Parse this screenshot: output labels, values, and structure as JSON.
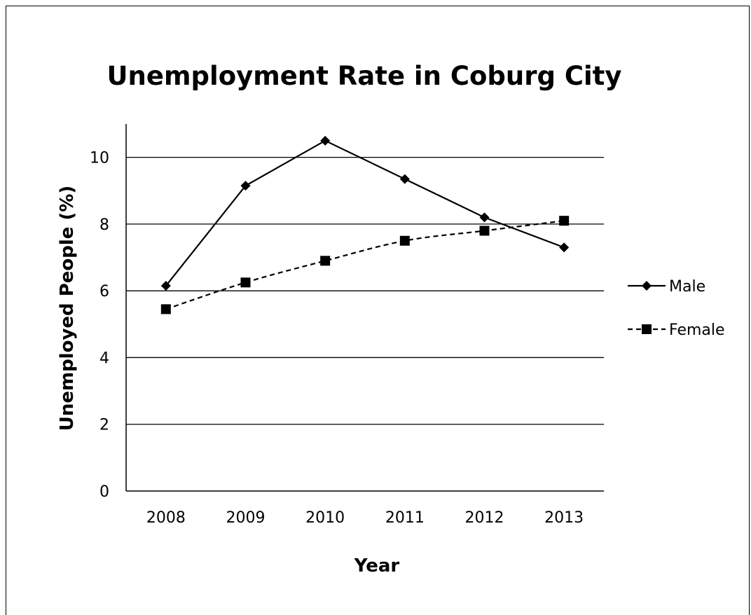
{
  "chart_data": {
    "type": "line",
    "title": "Unemployment Rate in Coburg City",
    "xlabel": "Year",
    "ylabel": "Unemployed People (%)",
    "categories": [
      "2008",
      "2009",
      "2010",
      "2011",
      "2012",
      "2013"
    ],
    "ylim": [
      0,
      11
    ],
    "yticks": [
      "0",
      "2",
      "4",
      "6",
      "8",
      "10"
    ],
    "grid": "horizontal",
    "legend_position": "right",
    "series": [
      {
        "name": "Male",
        "marker": "diamond",
        "line": "solid",
        "color": "#000000",
        "values": [
          6.15,
          9.15,
          10.5,
          9.35,
          8.2,
          7.3
        ]
      },
      {
        "name": "Female",
        "marker": "square",
        "line": "dashed",
        "color": "#000000",
        "values": [
          5.45,
          6.25,
          6.9,
          7.5,
          7.8,
          8.1
        ]
      }
    ]
  }
}
